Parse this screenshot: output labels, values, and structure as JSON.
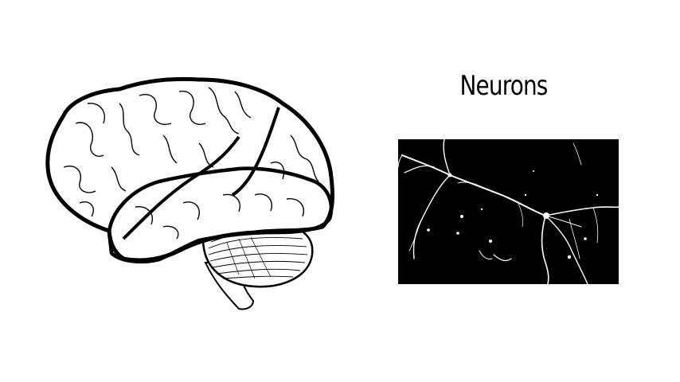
{
  "neurons": {
    "title": "Neurons"
  },
  "colors": {
    "background": "#ffffff",
    "ink": "#000000",
    "micrograph_background": "#000000",
    "micrograph_cells": "#ffffff"
  }
}
